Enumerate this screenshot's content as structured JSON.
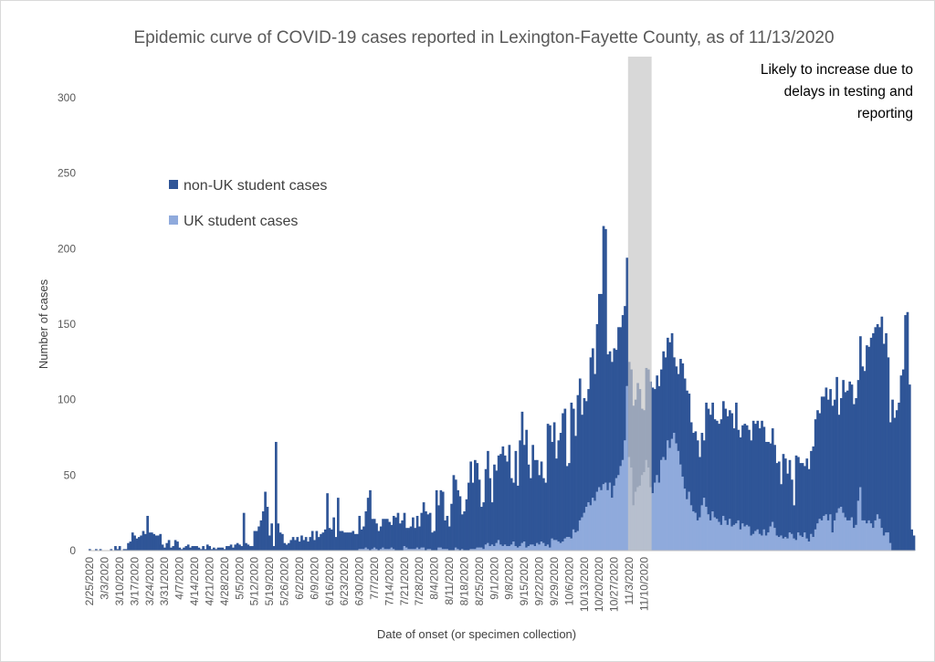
{
  "chart_data": {
    "type": "bar",
    "stacked": true,
    "title": "Epidemic curve of COVID-19 cases reported in Lexington-Fayette County, as of 11/13/2020",
    "xlabel": "Date of onset (or specimen collection)",
    "ylabel": "Number of cases",
    "ylim": [
      0,
      300
    ],
    "yticks": [
      0,
      50,
      100,
      150,
      200,
      250,
      300
    ],
    "grid": false,
    "legend_position": "upper-left",
    "start_date": "2/25/2020",
    "x_tick_labels": [
      "2/25/2020",
      "3/3/2020",
      "3/10/2020",
      "3/17/2020",
      "3/24/2020",
      "3/31/2020",
      "4/7/2020",
      "4/14/2020",
      "4/21/2020",
      "4/28/2020",
      "5/5/2020",
      "5/12/2020",
      "5/19/2020",
      "5/26/2020",
      "6/2/2020",
      "6/9/2020",
      "6/16/2020",
      "6/23/2020",
      "6/30/2020",
      "7/7/2020",
      "7/14/2020",
      "7/21/2020",
      "7/28/2020",
      "8/4/2020",
      "8/11/2020",
      "8/18/2020",
      "8/25/2020",
      "9/1/2020",
      "9/8/2020",
      "9/15/2020",
      "9/22/2020",
      "9/29/2020",
      "10/6/2020",
      "10/13/2020",
      "10/20/2020",
      "10/27/2020",
      "11/3/2020",
      "11/10/2020"
    ],
    "series": [
      {
        "name": "non-UK student cases",
        "color": "#2f5597",
        "values": [
          1,
          0,
          0,
          1,
          0,
          1,
          0,
          0,
          0,
          0,
          1,
          0,
          3,
          1,
          3,
          0,
          1,
          1,
          5,
          6,
          12,
          10,
          8,
          9,
          10,
          13,
          11,
          23,
          12,
          12,
          11,
          10,
          10,
          11,
          4,
          2,
          5,
          7,
          2,
          3,
          7,
          6,
          2,
          1,
          2,
          3,
          4,
          2,
          3,
          3,
          3,
          2,
          1,
          3,
          1,
          4,
          3,
          1,
          2,
          1,
          2,
          2,
          2,
          1,
          3,
          3,
          4,
          2,
          4,
          5,
          4,
          3,
          25,
          5,
          4,
          3,
          3,
          13,
          13,
          16,
          20,
          26,
          39,
          29,
          10,
          18,
          3,
          72,
          18,
          12,
          11,
          5,
          4,
          5,
          7,
          9,
          7,
          9,
          6,
          10,
          7,
          9,
          6,
          9,
          13,
          7,
          13,
          9,
          11,
          12,
          14,
          38,
          15,
          14,
          22,
          9,
          35,
          13,
          13,
          12,
          12,
          12,
          12,
          13,
          11,
          11,
          22,
          13,
          15,
          24,
          34,
          40,
          20,
          19,
          17,
          13,
          15,
          19,
          20,
          20,
          18,
          15,
          22,
          22,
          25,
          18,
          20,
          22,
          13,
          14,
          15,
          21,
          14,
          21,
          15,
          23,
          30,
          26,
          23,
          24,
          12,
          13,
          40,
          28,
          38,
          38,
          19,
          22,
          16,
          31,
          50,
          45,
          39,
          36,
          23,
          26,
          34,
          45,
          58,
          44,
          59,
          56,
          45,
          27,
          31,
          50,
          61,
          45,
          28,
          54,
          48,
          56,
          60,
          66,
          59,
          56,
          67,
          44,
          39,
          63,
          41,
          70,
          87,
          64,
          78,
          54,
          44,
          66,
          57,
          55,
          46,
          53,
          43,
          42,
          80,
          81,
          64,
          78,
          54,
          67,
          73,
          85,
          86,
          47,
          49,
          90,
          80,
          64,
          90,
          94,
          68,
          76,
          70,
          75,
          98,
          99,
          84,
          111,
          128,
          130,
          171,
          168,
          90,
          87,
          90,
          91,
          85,
          98,
          92,
          96,
          89,
          85,
          63,
          65,
          66,
          61,
          69,
          64,
          44,
          41,
          61,
          65,
          70,
          70,
          62,
          66,
          64,
          60,
          70,
          68,
          68,
          70,
          70,
          50,
          51,
          51,
          70,
          75,
          73,
          72,
          65,
          55,
          52,
          54,
          53,
          40,
          48,
          38,
          69,
          70,
          70,
          72,
          65,
          65,
          65,
          70,
          76,
          74,
          72,
          72,
          75,
          64,
          80,
          60,
          61,
          65,
          68,
          66,
          64,
          63,
          75,
          71,
          72,
          70,
          76,
          68,
          62,
          60,
          55,
          62,
          55,
          48,
          50,
          34,
          56,
          52,
          43,
          48,
          36,
          22,
          56,
          50,
          48,
          49,
          44,
          53,
          48,
          55,
          60,
          73,
          75,
          70,
          82,
          79,
          84,
          80,
          83,
          84,
          80,
          90,
          62,
          72,
          88,
          83,
          86,
          92,
          88,
          82,
          84,
          80,
          100,
          102,
          99,
          118,
          115,
          123,
          129,
          128,
          126,
          127,
          140,
          127,
          132,
          116,
          80,
          100,
          88,
          93,
          98,
          116,
          120,
          156,
          158,
          110,
          14,
          10
        ],
        "values_note": "bar heights in cases for the darker (non-UK) segment, one per day from 2/25/2020"
      },
      {
        "name": "UK student cases",
        "color": "#8faadc",
        "values": [
          0,
          0,
          0,
          0,
          0,
          0,
          0,
          0,
          0,
          0,
          0,
          0,
          0,
          0,
          0,
          0,
          0,
          0,
          0,
          0,
          0,
          0,
          0,
          0,
          0,
          0,
          0,
          0,
          0,
          0,
          0,
          0,
          0,
          0,
          0,
          0,
          0,
          0,
          0,
          0,
          0,
          0,
          0,
          0,
          0,
          0,
          0,
          0,
          0,
          0,
          0,
          0,
          0,
          0,
          0,
          0,
          0,
          0,
          0,
          0,
          0,
          0,
          0,
          0,
          0,
          0,
          0,
          0,
          0,
          0,
          0,
          0,
          0,
          0,
          0,
          0,
          0,
          0,
          0,
          0,
          0,
          0,
          0,
          0,
          0,
          0,
          0,
          0,
          0,
          0,
          0,
          0,
          0,
          0,
          0,
          0,
          0,
          0,
          0,
          0,
          0,
          0,
          0,
          0,
          0,
          0,
          0,
          0,
          0,
          0,
          0,
          0,
          0,
          0,
          0,
          0,
          0,
          0,
          0,
          0,
          0,
          0,
          0,
          0,
          0,
          0,
          1,
          1,
          1,
          2,
          1,
          0,
          1,
          2,
          1,
          0,
          1,
          2,
          1,
          1,
          1,
          2,
          1,
          0,
          0,
          0,
          0,
          3,
          2,
          1,
          1,
          1,
          1,
          2,
          1,
          2,
          2,
          0,
          1,
          1,
          0,
          0,
          0,
          2,
          2,
          1,
          1,
          1,
          0,
          0,
          0,
          2,
          1,
          0,
          1,
          0,
          0,
          0,
          1,
          1,
          1,
          2,
          2,
          2,
          1,
          4,
          5,
          3,
          4,
          3,
          5,
          7,
          4,
          3,
          4,
          3,
          3,
          4,
          6,
          3,
          2,
          3,
          5,
          6,
          2,
          3,
          4,
          4,
          3,
          5,
          4,
          6,
          5,
          3,
          4,
          2,
          8,
          7,
          7,
          6,
          5,
          6,
          8,
          9,
          9,
          8,
          14,
          12,
          13,
          20,
          22,
          25,
          29,
          32,
          30,
          35,
          33,
          39,
          42,
          40,
          44,
          45,
          40,
          45,
          35,
          43,
          48,
          50,
          56,
          60,
          73,
          109,
          62,
          55,
          30,
          39,
          42,
          43,
          50,
          52,
          60,
          55,
          42,
          38,
          45,
          50,
          45,
          60,
          62,
          60,
          73,
          68,
          74,
          78,
          71,
          66,
          57,
          49,
          41,
          34,
          39,
          30,
          26,
          25,
          20,
          22,
          30,
          35,
          29,
          24,
          20,
          26,
          22,
          21,
          19,
          17,
          23,
          20,
          17,
          21,
          16,
          17,
          18,
          20,
          14,
          18,
          16,
          17,
          16,
          10,
          11,
          13,
          14,
          11,
          10,
          14,
          10,
          12,
          16,
          19,
          15,
          10,
          9,
          10,
          8,
          9,
          8,
          12,
          11,
          8,
          7,
          12,
          10,
          9,
          12,
          8,
          6,
          11,
          9,
          14,
          18,
          21,
          20,
          23,
          24,
          20,
          24,
          12,
          20,
          25,
          28,
          29,
          25,
          22,
          20,
          20,
          22,
          15,
          17,
          33,
          42,
          20,
          20,
          18,
          20,
          18,
          15,
          20,
          24,
          21,
          15,
          10,
          12,
          12,
          5
        ],
        "values_note": "bar heights in cases for the lighter (UK) segment at the base"
      }
    ],
    "shaded_region": {
      "label": "Likely to increase due to delays in testing and reporting",
      "label_lines": [
        "Likely to increase due to",
        "delays in testing and",
        "reporting"
      ],
      "from_date": "11/3/2020",
      "to_date": "11/13/2020"
    }
  },
  "colors": {
    "non_uk": "#2f5597",
    "uk": "#8faadc",
    "shade": "#c7c7c7"
  }
}
